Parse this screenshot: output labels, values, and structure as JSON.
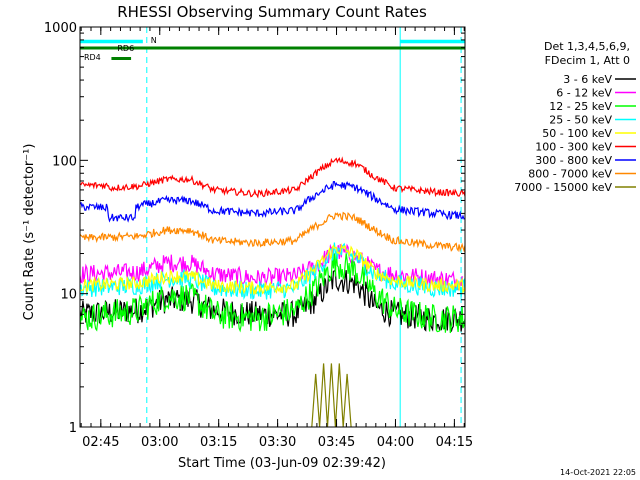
{
  "chart_data": {
    "type": "line",
    "title": "RHESSI Observing Summary Count Rates",
    "xlabel": "Start Time (03-Jun-09 02:39:42)",
    "ylabel": "Count Rate (s⁻¹ detector⁻¹)",
    "y_scale": "log",
    "ylim": [
      1,
      1000
    ],
    "xlim_minutes": [
      0,
      98
    ],
    "x_ticks": [
      {
        "minute": 5.3,
        "label": "02:45"
      },
      {
        "minute": 20.3,
        "label": "03:00"
      },
      {
        "minute": 35.3,
        "label": "03:15"
      },
      {
        "minute": 50.3,
        "label": "03:30"
      },
      {
        "minute": 65.3,
        "label": "03:45"
      },
      {
        "minute": 80.3,
        "label": "04:00"
      },
      {
        "minute": 95.3,
        "label": "04:15"
      }
    ],
    "y_ticks": [
      {
        "value": 1,
        "label": "1"
      },
      {
        "value": 10,
        "label": "10"
      },
      {
        "value": 100,
        "label": "100"
      },
      {
        "value": 1000,
        "label": "1000"
      }
    ],
    "legend_header": [
      "Det 1,3,4,5,6,9,",
      "FDecim 1, Att 0"
    ],
    "legend_placement": "right",
    "series": [
      {
        "name": "3 - 6 keV",
        "color": "#000000",
        "points": [
          [
            0,
            7
          ],
          [
            15,
            7.5
          ],
          [
            22,
            9
          ],
          [
            28,
            9
          ],
          [
            34,
            7.5
          ],
          [
            45,
            7
          ],
          [
            55,
            7
          ],
          [
            60,
            9
          ],
          [
            65,
            13
          ],
          [
            70,
            12
          ],
          [
            75,
            8
          ],
          [
            80,
            7
          ],
          [
            90,
            6.5
          ],
          [
            98,
            6.5
          ]
        ]
      },
      {
        "name": "6 - 12 keV",
        "color": "#ff00ff",
        "points": [
          [
            0,
            14
          ],
          [
            15,
            14.5
          ],
          [
            22,
            17
          ],
          [
            28,
            17
          ],
          [
            34,
            14
          ],
          [
            45,
            13
          ],
          [
            55,
            13.5
          ],
          [
            60,
            16
          ],
          [
            65,
            21
          ],
          [
            70,
            19
          ],
          [
            75,
            15
          ],
          [
            80,
            14
          ],
          [
            90,
            13
          ],
          [
            98,
            12.5
          ]
        ]
      },
      {
        "name": "12 - 25 keV",
        "color": "#00ff00",
        "points": [
          [
            0,
            6.5
          ],
          [
            15,
            7.5
          ],
          [
            22,
            9.5
          ],
          [
            28,
            9.5
          ],
          [
            34,
            7
          ],
          [
            45,
            6.5
          ],
          [
            55,
            7.5
          ],
          [
            60,
            11
          ],
          [
            65,
            17
          ],
          [
            70,
            15
          ],
          [
            75,
            10
          ],
          [
            80,
            7.5
          ],
          [
            90,
            6.5
          ],
          [
            98,
            6.5
          ]
        ]
      },
      {
        "name": "25 - 50 keV",
        "color": "#00ffff",
        "points": [
          [
            0,
            11
          ],
          [
            15,
            11.5
          ],
          [
            22,
            13
          ],
          [
            28,
            13
          ],
          [
            34,
            11
          ],
          [
            45,
            10.5
          ],
          [
            55,
            11
          ],
          [
            60,
            15
          ],
          [
            65,
            21
          ],
          [
            70,
            19
          ],
          [
            75,
            14
          ],
          [
            80,
            12
          ],
          [
            90,
            11
          ],
          [
            98,
            11
          ]
        ]
      },
      {
        "name": "50 - 100 keV",
        "color": "#ffff00",
        "points": [
          [
            0,
            11.5
          ],
          [
            15,
            12
          ],
          [
            22,
            13.5
          ],
          [
            28,
            13.5
          ],
          [
            34,
            11.5
          ],
          [
            45,
            11
          ],
          [
            55,
            11.5
          ],
          [
            60,
            15.5
          ],
          [
            65,
            22
          ],
          [
            70,
            20
          ],
          [
            75,
            14.5
          ],
          [
            80,
            12.5
          ],
          [
            90,
            11.5
          ],
          [
            98,
            11.5
          ]
        ]
      },
      {
        "name": "100 - 300 keV",
        "color": "#ff0000",
        "points": [
          [
            0,
            65
          ],
          [
            7,
            65
          ],
          [
            7.3,
            62
          ],
          [
            15,
            64
          ],
          [
            22,
            72
          ],
          [
            28,
            72
          ],
          [
            34,
            60
          ],
          [
            45,
            56
          ],
          [
            55,
            60
          ],
          [
            60,
            80
          ],
          [
            65,
            100
          ],
          [
            70,
            95
          ],
          [
            75,
            75
          ],
          [
            80,
            62
          ],
          [
            90,
            58
          ],
          [
            98,
            56
          ]
        ]
      },
      {
        "name": "300 - 800 keV",
        "color": "#0000ff",
        "points": [
          [
            0,
            45
          ],
          [
            7,
            44
          ],
          [
            7.3,
            37
          ],
          [
            14,
            37
          ],
          [
            14.3,
            45
          ],
          [
            22,
            50
          ],
          [
            28,
            50
          ],
          [
            34,
            42
          ],
          [
            45,
            40
          ],
          [
            55,
            42
          ],
          [
            60,
            55
          ],
          [
            65,
            66
          ],
          [
            70,
            63
          ],
          [
            75,
            52
          ],
          [
            80,
            43
          ],
          [
            90,
            40
          ],
          [
            98,
            38
          ]
        ]
      },
      {
        "name": "800 - 7000 keV",
        "color": "#ff8800",
        "points": [
          [
            0,
            26
          ],
          [
            15,
            27
          ],
          [
            22,
            30
          ],
          [
            28,
            30
          ],
          [
            34,
            25
          ],
          [
            45,
            24
          ],
          [
            55,
            25
          ],
          [
            60,
            32
          ],
          [
            65,
            39
          ],
          [
            70,
            37
          ],
          [
            75,
            30
          ],
          [
            80,
            25
          ],
          [
            90,
            23
          ],
          [
            98,
            22
          ]
        ]
      },
      {
        "name": "7000 - 15000 keV",
        "color": "#808000",
        "points": [
          [
            59,
            1
          ],
          [
            60,
            2.5
          ],
          [
            61,
            1
          ],
          [
            62,
            3
          ],
          [
            63,
            1
          ],
          [
            64,
            3
          ],
          [
            65,
            1
          ],
          [
            66,
            3
          ],
          [
            67,
            1
          ],
          [
            68,
            2.5
          ],
          [
            69,
            1
          ]
        ]
      }
    ],
    "flags": [
      {
        "name": "N",
        "color": "#00ffff"
      },
      {
        "name": "RD6",
        "color": "#008000"
      },
      {
        "name": "RD4",
        "color": "#008000"
      }
    ],
    "footer": "14-Oct-2021 22:05"
  }
}
